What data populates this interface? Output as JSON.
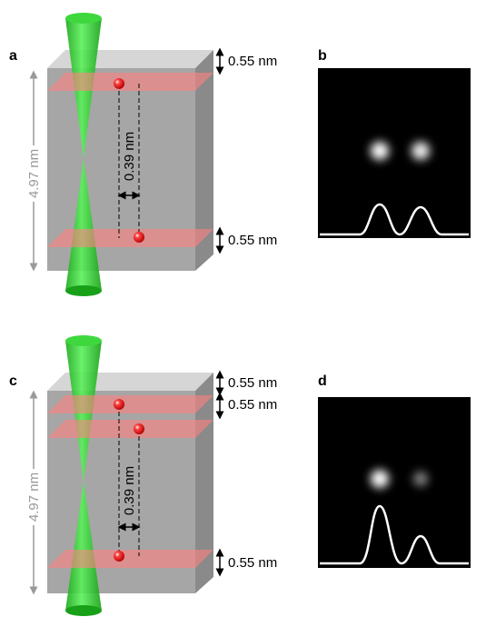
{
  "panels": [
    {
      "label": "a",
      "depth": "4.97 nm",
      "separation": "0.39 nm",
      "layers": [
        "0.55 nm",
        "0.55 nm"
      ]
    },
    {
      "label": "b"
    },
    {
      "label": "c",
      "depth": "4.97 nm",
      "separation": "0.39 nm",
      "layers": [
        "0.55 nm",
        "0.55 nm",
        "0.55 nm"
      ]
    },
    {
      "label": "d"
    }
  ]
}
